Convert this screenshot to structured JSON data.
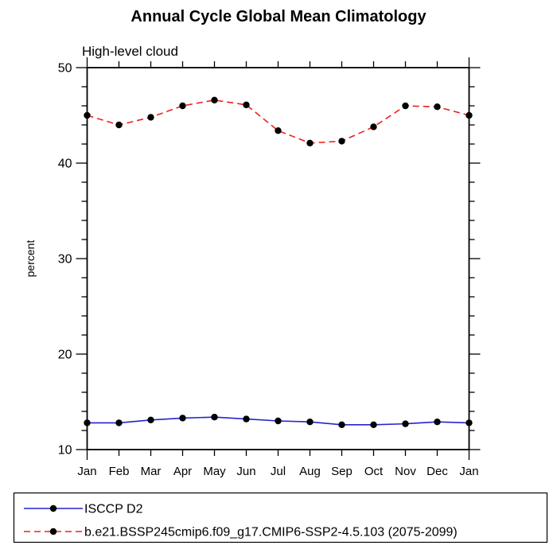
{
  "title": "Annual Cycle Global Mean Climatology",
  "subtitle": "High-level cloud",
  "chart_data": {
    "type": "line",
    "x": [
      "Jan",
      "Feb",
      "Mar",
      "Apr",
      "May",
      "Jun",
      "Jul",
      "Aug",
      "Sep",
      "Oct",
      "Nov",
      "Dec",
      "Jan"
    ],
    "xlabel": "",
    "ylabel": "percent",
    "ylim": [
      10,
      50
    ],
    "ytick_major": [
      10,
      20,
      30,
      40,
      50
    ],
    "ytick_minor_step": 2,
    "grid": false,
    "legend_position": "bottom",
    "series": [
      {
        "name": "ISCCP D2",
        "color": "#2424cf",
        "line_style": "solid",
        "marker": "circle",
        "marker_color": "#000000",
        "values": [
          12.8,
          12.8,
          13.1,
          13.3,
          13.4,
          13.2,
          13.0,
          12.9,
          12.6,
          12.6,
          12.7,
          12.9,
          12.8
        ]
      },
      {
        "name": "b.e21.BSSP245cmip6.f09_g17.CMIP6-SSP2-4.5.103 (2075-2099)",
        "color": "#ee2020",
        "line_style": "dashed",
        "marker": "circle",
        "marker_color": "#000000",
        "values": [
          45.0,
          44.0,
          44.8,
          46.0,
          46.6,
          46.1,
          43.4,
          42.1,
          42.3,
          43.8,
          46.0,
          45.9,
          45.0
        ]
      }
    ]
  }
}
